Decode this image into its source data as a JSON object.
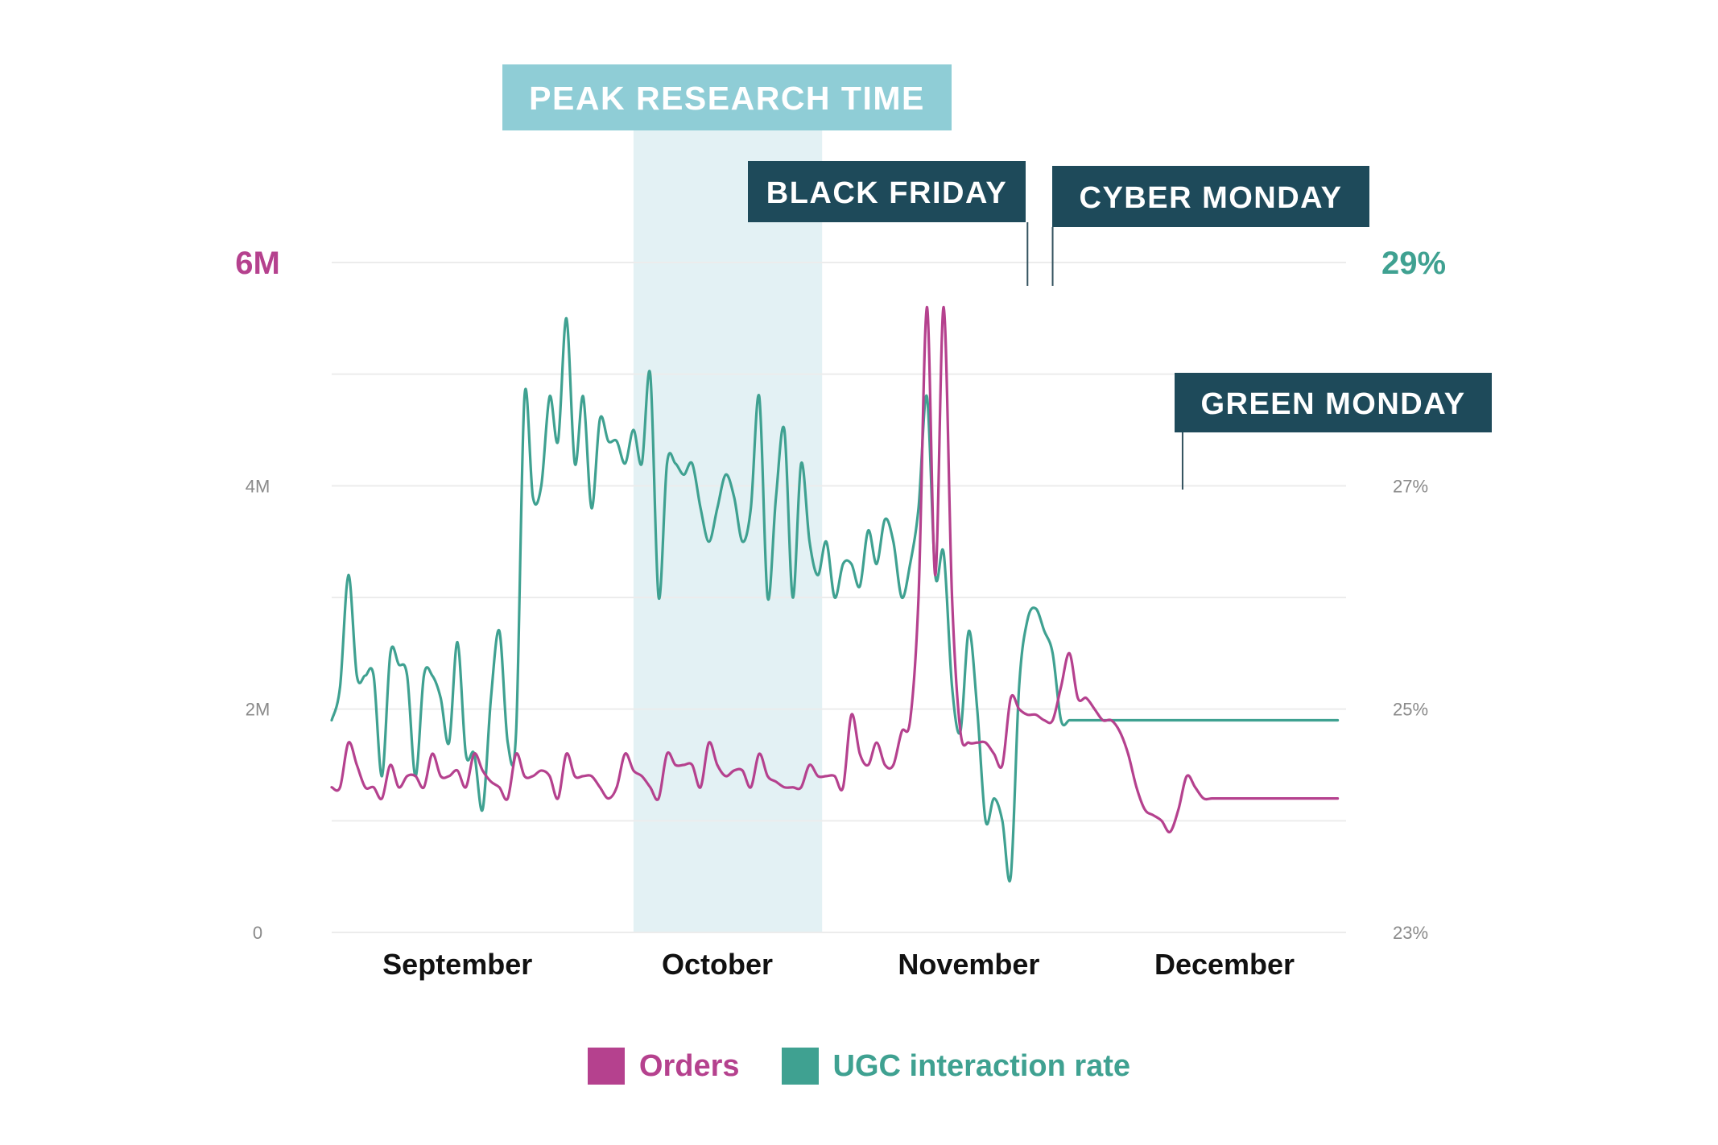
{
  "chart_data": {
    "type": "line",
    "x": [
      0,
      1,
      2,
      3,
      4,
      5,
      6,
      7,
      8,
      9,
      10,
      11,
      12,
      13,
      14,
      15,
      16,
      17,
      18,
      19,
      20,
      21,
      22,
      23,
      24,
      25,
      26,
      27,
      28,
      29,
      30,
      31,
      32,
      33,
      34,
      35,
      36,
      37,
      38,
      39,
      40,
      41,
      42,
      43,
      44,
      45,
      46,
      47,
      48,
      49,
      50,
      51,
      52,
      53,
      54,
      55,
      56,
      57,
      58,
      59,
      60,
      61,
      62,
      63,
      64,
      65,
      66,
      67,
      68,
      69,
      70,
      71,
      72,
      73,
      74,
      75,
      76,
      77,
      78,
      79,
      80,
      81,
      82,
      83,
      84,
      85,
      86,
      87,
      88,
      89,
      90,
      91,
      92,
      93,
      94,
      95,
      96,
      97,
      98,
      99,
      100,
      101,
      102,
      103,
      104,
      105,
      106,
      107,
      108,
      109,
      110,
      111,
      112,
      113,
      114,
      115,
      116,
      117,
      118,
      119,
      120
    ],
    "x_labels": [
      "September",
      "October",
      "November",
      "December"
    ],
    "x_label_positions": [
      15,
      46,
      76,
      106.5
    ],
    "x_range": [
      0,
      121
    ],
    "y_left": {
      "ticks": [
        "0",
        "2M",
        "4M",
        "6M"
      ],
      "range": [
        0,
        6
      ]
    },
    "y_right": {
      "ticks": [
        "23%",
        "25%",
        "27%",
        "29%"
      ],
      "range": [
        23,
        29
      ]
    },
    "series": [
      {
        "name": "Orders",
        "color": "#b5418e",
        "axis": "left",
        "values": [
          1.3,
          1.3,
          1.7,
          1.5,
          1.3,
          1.3,
          1.2,
          1.5,
          1.3,
          1.4,
          1.4,
          1.3,
          1.6,
          1.4,
          1.4,
          1.45,
          1.3,
          1.6,
          1.45,
          1.35,
          1.3,
          1.2,
          1.6,
          1.4,
          1.4,
          1.45,
          1.4,
          1.2,
          1.6,
          1.4,
          1.4,
          1.4,
          1.3,
          1.2,
          1.3,
          1.6,
          1.45,
          1.4,
          1.3,
          1.2,
          1.6,
          1.5,
          1.5,
          1.5,
          1.3,
          1.7,
          1.5,
          1.4,
          1.45,
          1.45,
          1.3,
          1.6,
          1.4,
          1.35,
          1.3,
          1.3,
          1.3,
          1.5,
          1.4,
          1.4,
          1.4,
          1.3,
          1.95,
          1.6,
          1.5,
          1.7,
          1.5,
          1.5,
          1.8,
          1.9,
          3.0,
          5.6,
          3.2,
          5.6,
          3.0,
          1.8,
          1.7,
          1.7,
          1.7,
          1.6,
          1.5,
          2.1,
          2.0,
          1.95,
          1.95,
          1.9,
          1.9,
          2.2,
          2.5,
          2.1,
          2.1,
          2.0,
          1.9,
          1.9,
          1.8,
          1.6,
          1.3,
          1.1,
          1.05,
          1.0,
          0.9,
          1.1,
          1.4,
          1.3,
          1.2,
          1.2,
          1.2,
          1.2,
          1.2,
          1.2,
          1.2,
          1.2,
          1.2,
          1.2,
          1.2,
          1.2,
          1.2,
          1.2,
          1.2,
          1.2,
          1.2
        ]
      },
      {
        "name": "UGC interaction rate",
        "color": "#3fa191",
        "axis": "right",
        "values": [
          24.9,
          25.2,
          26.2,
          25.3,
          25.3,
          25.3,
          24.4,
          25.5,
          25.4,
          25.3,
          24.4,
          25.3,
          25.3,
          25.1,
          24.7,
          25.6,
          24.6,
          24.6,
          24.1,
          25.1,
          25.7,
          24.7,
          24.8,
          27.8,
          26.9,
          27.0,
          27.8,
          27.4,
          28.5,
          27.2,
          27.8,
          26.8,
          27.6,
          27.4,
          27.4,
          27.2,
          27.5,
          27.2,
          28.0,
          26.0,
          27.2,
          27.2,
          27.1,
          27.2,
          26.8,
          26.5,
          26.8,
          27.1,
          26.9,
          26.5,
          26.8,
          27.8,
          26.0,
          26.9,
          27.5,
          26.0,
          27.2,
          26.5,
          26.2,
          26.5,
          26.0,
          26.3,
          26.3,
          26.1,
          26.6,
          26.3,
          26.7,
          26.5,
          26.0,
          26.3,
          26.8,
          27.8,
          26.2,
          26.4,
          25.2,
          24.8,
          25.7,
          25.0,
          24.0,
          24.2,
          24.0,
          23.5,
          25.2,
          25.8,
          25.9,
          25.7,
          25.5,
          24.9,
          24.9,
          24.9,
          24.9,
          24.9,
          24.9,
          24.9,
          24.9,
          24.9,
          24.9,
          24.9,
          24.9,
          24.9,
          24.9,
          24.9,
          24.9,
          24.9,
          24.9,
          24.9,
          24.9,
          24.9,
          24.9,
          24.9,
          24.9,
          24.9,
          24.9,
          24.9,
          24.9,
          24.9,
          24.9,
          24.9,
          24.9,
          24.9,
          24.9
        ]
      }
    ],
    "highlight_band": {
      "label": "PEAK RESEARCH TIME",
      "x_start": 36,
      "x_end": 58.5
    },
    "callouts": [
      {
        "label": "BLACK FRIDAY",
        "x": 83
      },
      {
        "label": "CYBER MONDAY",
        "x": 86
      },
      {
        "label": "GREEN MONDAY",
        "x": 101.5
      }
    ],
    "grid": true,
    "legend_position": "bottom-center"
  },
  "colors": {
    "orders": "#b5418e",
    "ugc": "#3fa191",
    "band": "#e3f1f4",
    "band_label_bg": "#8fcdd6",
    "callout_bg": "#1e4a5a",
    "grid": "#ececec",
    "axis_text": "#8a8a8a",
    "month_text": "#111111"
  }
}
